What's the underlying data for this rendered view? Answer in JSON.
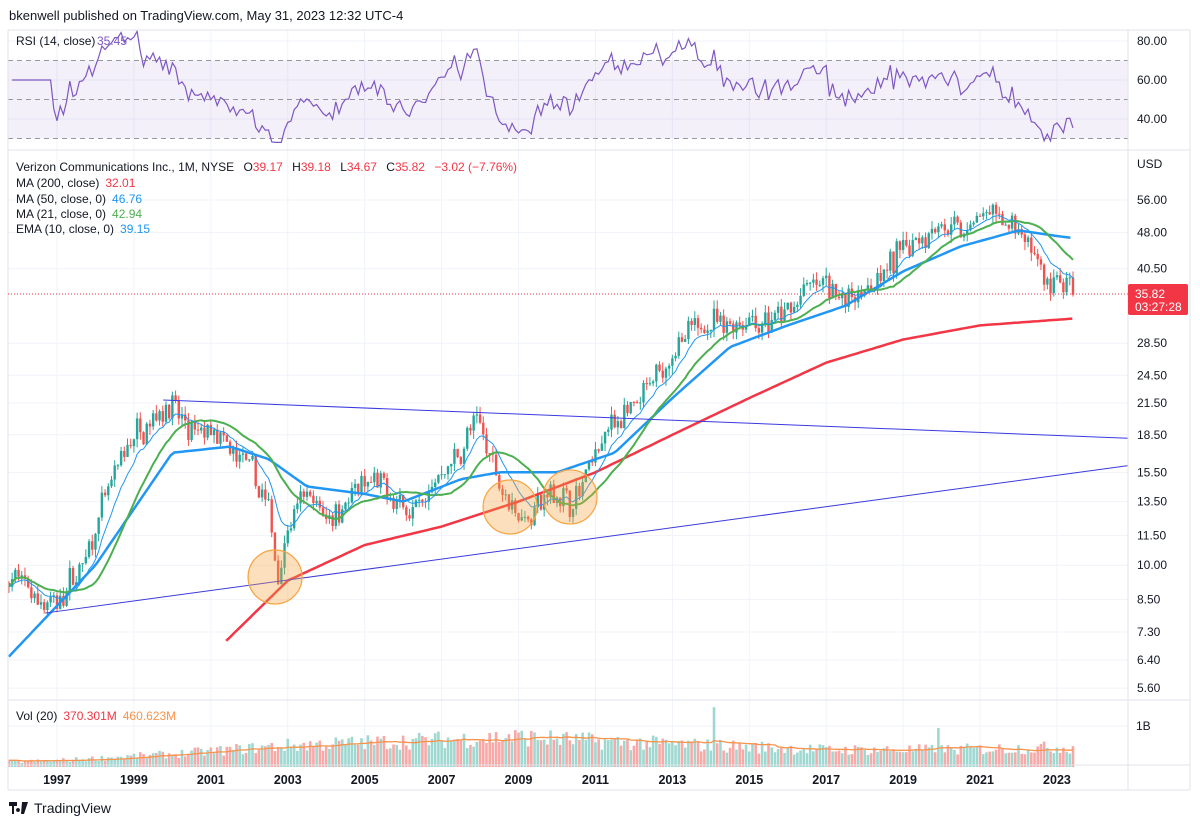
{
  "header": {
    "published": "bkenwell published on TradingView.com, May 31, 2023 12:32 UTC-4"
  },
  "rsi_legend": {
    "label": "RSI (14, close)",
    "value": "35.45",
    "axis": [
      "80.00",
      "60.00",
      "40.00"
    ]
  },
  "main_legend": {
    "symbol": "Verizon Communications Inc., 1M, NYSE",
    "o_label": "O",
    "o": "39.17",
    "h_label": "H",
    "h": "39.18",
    "l_label": "L",
    "l": "34.67",
    "c_label": "C",
    "c": "35.82",
    "change": "−3.02 (−7.76%)"
  },
  "indicators": [
    {
      "label": "MA (200, close)",
      "value": "32.01",
      "color": "#f23645"
    },
    {
      "label": "MA (50, close, 0)",
      "value": "46.76",
      "color": "#2196f3"
    },
    {
      "label": "MA (21, close, 0)",
      "value": "42.94",
      "color": "#4caf50"
    },
    {
      "label": "EMA (10, close, 0)",
      "value": "39.15",
      "color": "#2196f3"
    }
  ],
  "price_axis": {
    "currency": "USD",
    "labels": [
      "56.00",
      "48.00",
      "40.50",
      "28.50",
      "24.50",
      "21.50",
      "18.50",
      "15.50",
      "13.50",
      "11.50",
      "10.00",
      "8.50",
      "7.30",
      "6.40",
      "5.60"
    ]
  },
  "current_price": {
    "price": "35.82",
    "countdown": "03:27:28"
  },
  "volume_legend": {
    "label": "Vol (20)",
    "value": "370.301M",
    "ma": "460.623M",
    "axis": "1B"
  },
  "time_axis": [
    "1997",
    "1999",
    "2001",
    "2003",
    "2005",
    "2007",
    "2009",
    "2011",
    "2013",
    "2015",
    "2017",
    "2019",
    "2021",
    "2023"
  ],
  "logo": {
    "text": "TradingView"
  },
  "colors": {
    "up": "#26a69a",
    "down": "#ef5350",
    "rsi": "#7e57c2",
    "trend": "#3a3adf",
    "circle": "#f7a440"
  },
  "chart_data": {
    "type": "candlestick",
    "title": "Verizon Communications Inc., 1M, NYSE",
    "scale": "log",
    "ylim": [
      5.6,
      56
    ],
    "xlim": [
      1995.75,
      2025.1
    ],
    "close_keypoints": [
      [
        1995.75,
        9.2
      ],
      [
        1996.0,
        9.5
      ],
      [
        1996.5,
        8.5
      ],
      [
        1997.0,
        8.3
      ],
      [
        1997.8,
        10.5
      ],
      [
        1998.3,
        14
      ],
      [
        1998.9,
        18
      ],
      [
        1999.5,
        20
      ],
      [
        1999.9,
        21.5
      ],
      [
        2000.5,
        18.5
      ],
      [
        2001.0,
        19
      ],
      [
        2001.5,
        17
      ],
      [
        2002.0,
        16
      ],
      [
        2002.5,
        13
      ],
      [
        2002.75,
        9.5
      ],
      [
        2003.0,
        12
      ],
      [
        2003.5,
        14
      ],
      [
        2004.0,
        12.5
      ],
      [
        2004.5,
        13.5
      ],
      [
        2005.0,
        14.5
      ],
      [
        2005.5,
        14.5
      ],
      [
        2006.0,
        13
      ],
      [
        2006.5,
        13.5
      ],
      [
        2007.0,
        15.5
      ],
      [
        2007.5,
        17
      ],
      [
        2007.9,
        20
      ],
      [
        2008.5,
        15
      ],
      [
        2008.9,
        13
      ],
      [
        2009.2,
        12.5
      ],
      [
        2009.8,
        14
      ],
      [
        2010.5,
        13.5
      ],
      [
        2010.9,
        16.5
      ],
      [
        2011.5,
        20
      ],
      [
        2012.0,
        20.5
      ],
      [
        2012.5,
        24
      ],
      [
        2013.0,
        27
      ],
      [
        2013.5,
        30
      ],
      [
        2014.0,
        32
      ],
      [
        2014.5,
        31
      ],
      [
        2015.0,
        32
      ],
      [
        2015.5,
        31
      ],
      [
        2016.0,
        33
      ],
      [
        2016.5,
        37
      ],
      [
        2017.0,
        38
      ],
      [
        2017.5,
        35
      ],
      [
        2018.0,
        37
      ],
      [
        2018.5,
        39
      ],
      [
        2019.0,
        45
      ],
      [
        2019.5,
        48
      ],
      [
        2020.0,
        50
      ],
      [
        2020.5,
        48
      ],
      [
        2021.0,
        52
      ],
      [
        2021.5,
        51
      ],
      [
        2022.0,
        48
      ],
      [
        2022.5,
        42
      ],
      [
        2022.8,
        36
      ],
      [
        2023.0,
        39
      ],
      [
        2023.42,
        35.82
      ]
    ],
    "ma200": [
      [
        2001.4,
        7.0
      ],
      [
        2003,
        9.3
      ],
      [
        2005,
        11
      ],
      [
        2007,
        12
      ],
      [
        2009,
        13.5
      ],
      [
        2011,
        15.5
      ],
      [
        2013,
        18.5
      ],
      [
        2015,
        22
      ],
      [
        2017,
        26
      ],
      [
        2019,
        29
      ],
      [
        2021,
        31
      ],
      [
        2023.42,
        32.01
      ]
    ],
    "ma50": [
      [
        1995.75,
        6.5
      ],
      [
        1998,
        10
      ],
      [
        2000,
        17
      ],
      [
        2001.5,
        17.5
      ],
      [
        2002.5,
        16.5
      ],
      [
        2003.5,
        14.5
      ],
      [
        2005,
        14
      ],
      [
        2006,
        13.5
      ],
      [
        2007.5,
        15
      ],
      [
        2008.5,
        15.5
      ],
      [
        2010,
        15.5
      ],
      [
        2011.5,
        17
      ],
      [
        2013,
        22
      ],
      [
        2014.5,
        28
      ],
      [
        2016,
        31
      ],
      [
        2017.5,
        34
      ],
      [
        2019,
        40
      ],
      [
        2020.5,
        45
      ],
      [
        2022,
        48.5
      ],
      [
        2023.42,
        46.76
      ]
    ],
    "volume_keypoints_billions": [
      [
        1995.75,
        0.12
      ],
      [
        1997,
        0.15
      ],
      [
        2000,
        0.3
      ],
      [
        2003,
        0.5
      ],
      [
        2006,
        0.6
      ],
      [
        2009,
        0.7
      ],
      [
        2011,
        0.6
      ],
      [
        2014,
        0.5
      ],
      [
        2017,
        0.4
      ],
      [
        2020,
        0.4
      ],
      [
        2023.42,
        0.46
      ]
    ],
    "volume_spikes": [
      [
        2014.08,
        1.46
      ],
      [
        2019.95,
        0.95
      ],
      [
        2008.75,
        0.8
      ]
    ],
    "trendlines": [
      {
        "from": [
          1999.76,
          21.8
        ],
        "to": [
          2024.85,
          18.2
        ]
      },
      {
        "from": [
          1996.69,
          7.98
        ],
        "to": [
          2024.85,
          16.0
        ]
      }
    ],
    "highlights": [
      [
        2002.67,
        9.46
      ],
      [
        2008.78,
        13.16
      ],
      [
        2010.34,
        13.8
      ]
    ],
    "rsi_levels": [
      70,
      50,
      30
    ]
  }
}
